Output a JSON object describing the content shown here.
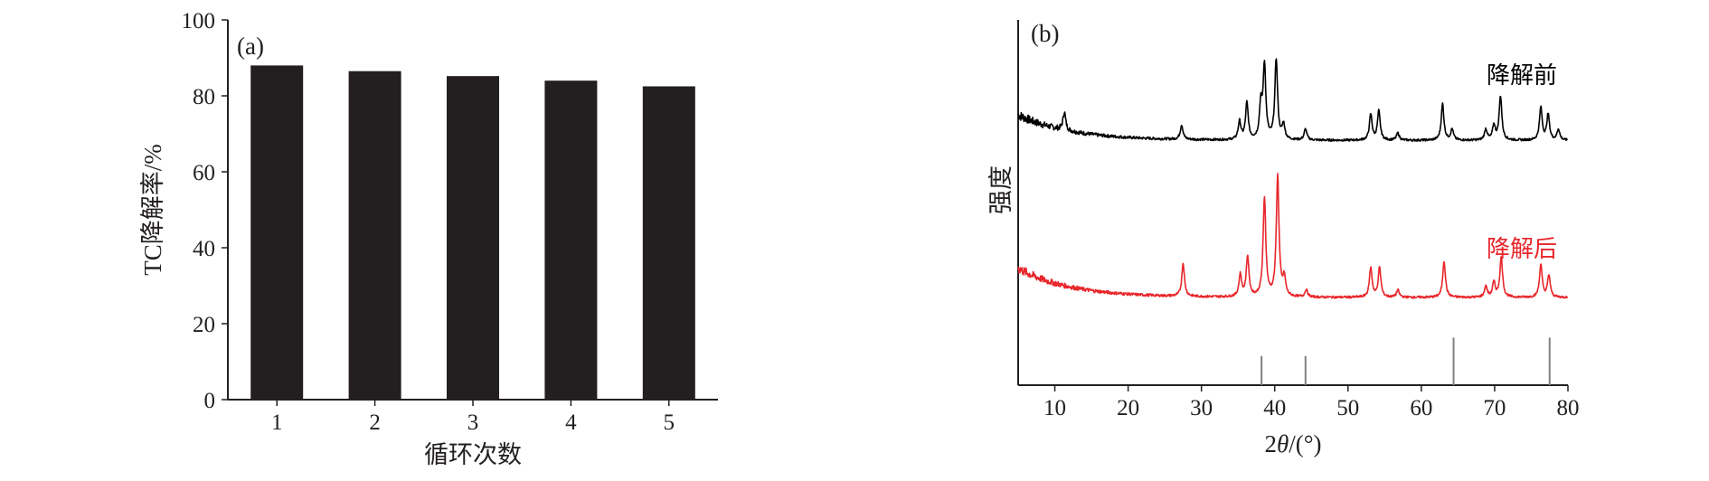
{
  "colors": {
    "axis": "#231f20",
    "bar": "#231f20",
    "before": "#000000",
    "after": "#e8262b",
    "reference": "#808080"
  },
  "chart_data": [
    {
      "type": "bar",
      "panel_label": "(a)",
      "categories": [
        "1",
        "2",
        "3",
        "4",
        "5"
      ],
      "values": [
        88,
        86.5,
        85.2,
        84,
        82.5
      ],
      "xlabel": "循环次数",
      "ylabel": "TC降解率/%",
      "ylim": [
        0,
        100
      ],
      "yticks": [
        "0",
        "20",
        "40",
        "60",
        "80",
        "100"
      ],
      "grid": false
    },
    {
      "type": "line",
      "panel_label": "(b)",
      "xlabel": "2θ/(°)",
      "ylabel": "强度",
      "xlim": [
        5,
        80
      ],
      "xticks": [
        "10",
        "20",
        "30",
        "40",
        "50",
        "60",
        "70",
        "80"
      ],
      "y_tick_labels": false,
      "grid": false,
      "series": [
        {
          "name": "降解前",
          "baseline": 67,
          "start_level": 74,
          "peaks": [
            [
              11.3,
              5
            ],
            [
              27.3,
              4
            ],
            [
              35.2,
              5
            ],
            [
              36.2,
              10
            ],
            [
              38.1,
              9
            ],
            [
              38.6,
              20
            ],
            [
              40.2,
              22
            ],
            [
              41.2,
              4
            ],
            [
              44.2,
              3
            ],
            [
              53.1,
              7
            ],
            [
              54.2,
              8
            ],
            [
              56.8,
              2
            ],
            [
              62.9,
              10
            ],
            [
              64.2,
              3
            ],
            [
              68.8,
              3
            ],
            [
              69.9,
              4
            ],
            [
              70.8,
              12
            ],
            [
              76.3,
              9
            ],
            [
              77.3,
              7
            ],
            [
              78.7,
              3
            ]
          ]
        },
        {
          "name": "降解后",
          "baseline": 24,
          "start_level": 32,
          "peaks": [
            [
              27.5,
              9
            ],
            [
              35.3,
              6
            ],
            [
              36.3,
              11
            ],
            [
              38.6,
              27
            ],
            [
              40.4,
              33
            ],
            [
              41.3,
              5
            ],
            [
              44.3,
              2
            ],
            [
              53.1,
              8
            ],
            [
              54.3,
              8
            ],
            [
              56.8,
              2
            ],
            [
              63.1,
              10
            ],
            [
              68.8,
              3
            ],
            [
              69.9,
              4
            ],
            [
              70.9,
              11
            ],
            [
              76.3,
              9
            ],
            [
              77.4,
              6
            ]
          ]
        },
        {
          "name": "",
          "type": "stick",
          "positions": [
            38.2,
            44.2,
            64.4,
            77.5
          ],
          "heights": [
            8,
            8,
            13,
            13
          ]
        }
      ]
    }
  ]
}
